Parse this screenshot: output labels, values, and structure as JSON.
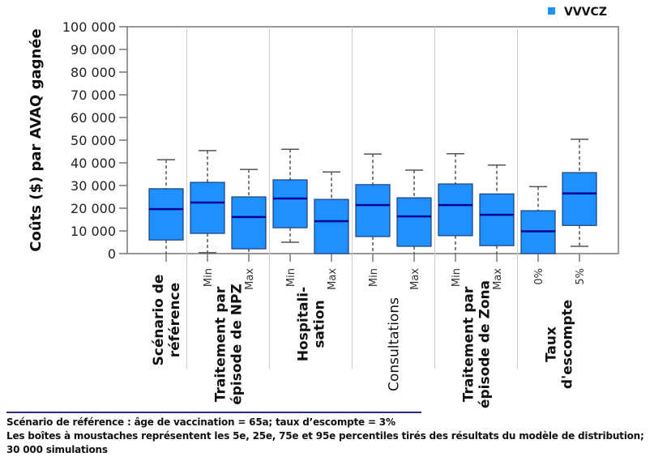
{
  "chart_data": {
    "type": "boxplot",
    "ylabel": "Coûts ($) par AVAQ gagnée",
    "ylim": [
      0,
      100000
    ],
    "yticks": [
      0,
      10000,
      20000,
      30000,
      40000,
      50000,
      60000,
      70000,
      80000,
      90000,
      100000
    ],
    "ytick_labels": [
      "0",
      "10 000",
      "20 000",
      "30 000",
      "40 000",
      "50 000",
      "60 000",
      "70 000",
      "80 000",
      "90 000",
      "100 000"
    ],
    "grid": false,
    "legend": {
      "placement": "top-right",
      "entries": [
        {
          "name": "VVVCZ",
          "color": "#1e90ff"
        }
      ]
    },
    "groups": [
      {
        "label": "Scénario de référence",
        "boxes": [
          {
            "label": "",
            "p5": null,
            "q1": 6000,
            "median": 19600,
            "q3": 28600,
            "p95": 41400
          }
        ]
      },
      {
        "label": "Traitement par épisode de NPZ",
        "boxes": [
          {
            "label": "Min",
            "p5": 400,
            "q1": 8900,
            "median": 22500,
            "q3": 31400,
            "p95": 45400
          },
          {
            "label": "Max",
            "p5": null,
            "q1": 2100,
            "median": 16100,
            "q3": 25000,
            "p95": 37100
          }
        ]
      },
      {
        "label": "Hospitali-sation",
        "boxes": [
          {
            "label": "Min",
            "p5": 5000,
            "q1": 11400,
            "median": 24300,
            "q3": 32500,
            "p95": 46000
          },
          {
            "label": "Max",
            "p5": null,
            "q1": 0,
            "median": 14300,
            "q3": 23900,
            "p95": 36000
          }
        ]
      },
      {
        "label": "Consultations",
        "boxes": [
          {
            "label": "Min",
            "p5": null,
            "q1": 7500,
            "median": 21400,
            "q3": 30400,
            "p95": 43900
          },
          {
            "label": "Max",
            "p5": null,
            "q1": 3200,
            "median": 16400,
            "q3": 24600,
            "p95": 36800
          }
        ]
      },
      {
        "label": "Traitement par épisode de Zona",
        "boxes": [
          {
            "label": "Min",
            "p5": null,
            "q1": 7900,
            "median": 21400,
            "q3": 30700,
            "p95": 44000
          },
          {
            "label": "Max",
            "p5": null,
            "q1": 3500,
            "median": 17100,
            "q3": 26300,
            "p95": 39000
          }
        ]
      },
      {
        "label": "Taux d'escompte",
        "boxes": [
          {
            "label": "0%",
            "p5": null,
            "q1": 0,
            "median": 9800,
            "q3": 18900,
            "p95": 29500
          },
          {
            "label": "5%",
            "p5": 3200,
            "q1": 12400,
            "median": 26500,
            "q3": 35700,
            "p95": 50400
          }
        ]
      }
    ],
    "colors": {
      "box": "#1e90ff",
      "median": "#00008b",
      "border": "#1f3f73"
    }
  },
  "notes": {
    "line1": "Scénario de référence : âge de vaccination = 65a; taux d’escompte = 3%",
    "line2": "Les boîtes à moustaches représentent les 5e, 25e, 75e et 95e percentiles tirés des résultats du modèle de distribution;",
    "line3": "30 000 simulations"
  }
}
